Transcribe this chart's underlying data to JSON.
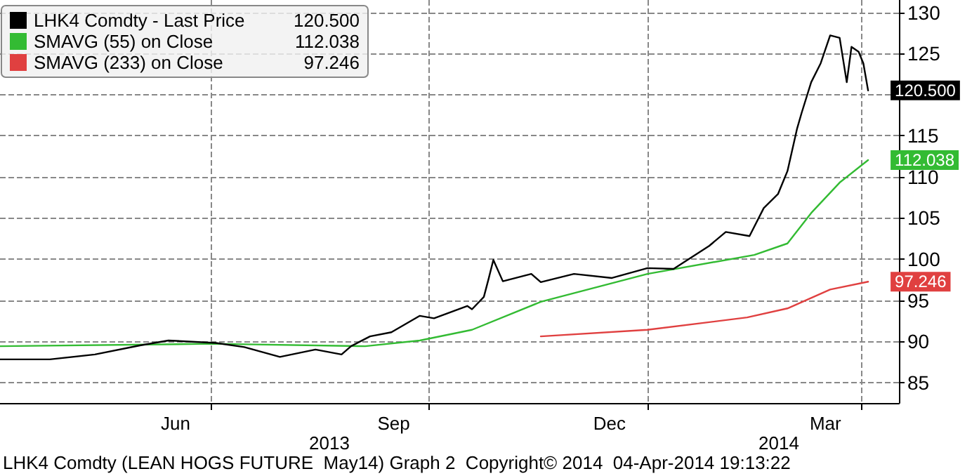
{
  "chart_data": {
    "type": "line",
    "annotations": [
      "2013",
      "2014",
      "LHK4 Comdty (LEAN HOGS FUTURE  May14) Graph 2  Copyright© 2014  04-Apr-2014 19:13:22"
    ],
    "xlim": [
      "2013-04-03",
      "2014-04-17"
    ],
    "xticks": [
      {
        "value": "2013-06-16",
        "label": "Jun"
      },
      {
        "value": "2013-07-01",
        "label": null
      },
      {
        "value": "2013-09-16",
        "label": "Sep"
      },
      {
        "value": "2013-10-01",
        "label": null
      },
      {
        "value": "2013-12-16",
        "label": "Dec"
      },
      {
        "value": "2014-01-01",
        "label": null
      },
      {
        "value": "2014-03-17",
        "label": "Mar"
      },
      {
        "value": "2014-04-01",
        "label": null
      }
    ],
    "ylim": [
      82.5,
      131.5
    ],
    "yticks": [
      85,
      90,
      95,
      100,
      105,
      110,
      115,
      {
        "value": 120,
        "label": null
      },
      125,
      130
    ],
    "grid": true,
    "legend": "top left",
    "marker": "none",
    "line_style": "solid",
    "series": [
      {
        "name": "LHK4 Comdty - Last Price",
        "color": "#000000",
        "x": [
          "2013-04-03",
          "2013-04-24",
          "2013-05-13",
          "2013-06-01",
          "2013-06-13",
          "2013-07-03",
          "2013-07-15",
          "2013-07-30",
          "2013-08-14",
          "2013-08-25",
          "2013-08-29",
          "2013-09-06",
          "2013-09-15",
          "2013-09-27",
          "2013-10-03",
          "2013-10-17",
          "2013-10-19",
          "2013-10-24",
          "2013-10-26",
          "2013-10-28",
          "2013-11-01",
          "2013-11-13",
          "2013-11-17",
          "2013-12-01",
          "2013-12-17",
          "2014-01-01",
          "2014-01-12",
          "2014-01-27",
          "2014-02-03",
          "2014-02-13",
          "2014-02-19",
          "2014-02-25",
          "2014-03-01",
          "2014-03-05",
          "2014-03-07",
          "2014-03-11",
          "2014-03-15",
          "2014-03-19",
          "2014-03-23",
          "2014-03-26",
          "2014-03-28",
          "2014-03-31",
          "2014-04-02",
          "2014-04-04"
        ],
        "values": [
          87.8,
          87.8,
          88.4,
          89.5,
          90.1,
          89.8,
          89.3,
          88.1,
          89.0,
          88.4,
          89.4,
          90.6,
          91.1,
          93.1,
          92.8,
          94.3,
          93.9,
          95.4,
          97.6,
          99.9,
          97.3,
          98.2,
          97.2,
          98.2,
          97.7,
          98.9,
          98.8,
          101.6,
          103.3,
          102.8,
          106.2,
          107.9,
          110.7,
          115.8,
          117.8,
          121.5,
          123.8,
          127.2,
          126.9,
          121.5,
          125.8,
          125.2,
          123.8,
          120.5
        ],
        "value_labels": [
          null,
          null,
          null,
          null,
          null,
          null,
          null,
          null,
          null,
          null,
          null,
          null,
          null,
          null,
          null,
          null,
          null,
          null,
          null,
          null,
          null,
          null,
          null,
          null,
          null,
          null,
          null,
          null,
          null,
          null,
          null,
          null,
          null,
          null,
          null,
          null,
          null,
          null,
          null,
          null,
          null,
          null,
          null,
          "120.500"
        ]
      },
      {
        "name": "SMAVG (55) on Close",
        "color": "#33bb33",
        "x": [
          "2013-04-03",
          "2013-07-01",
          "2013-09-04",
          "2013-09-27",
          "2013-10-19",
          "2013-11-17",
          "2014-01-01",
          "2014-02-15",
          "2014-03-01",
          "2014-03-11",
          "2014-03-23",
          "2014-04-04"
        ],
        "values": [
          89.4,
          89.7,
          89.4,
          90.1,
          91.4,
          94.8,
          98.2,
          100.5,
          101.9,
          105.6,
          109.3,
          112.038
        ],
        "value_labels": [
          null,
          null,
          null,
          null,
          null,
          null,
          null,
          null,
          null,
          null,
          null,
          "112.038"
        ]
      },
      {
        "name": "SMAVG (233) on Close",
        "color": "#e04040",
        "x": [
          "2013-11-17",
          "2014-01-01",
          "2014-02-12",
          "2014-03-01",
          "2014-03-19",
          "2014-04-04"
        ],
        "values": [
          90.6,
          91.4,
          92.9,
          94.0,
          96.3,
          97.246
        ],
        "value_labels": [
          null,
          null,
          null,
          null,
          null,
          "97.246"
        ]
      }
    ]
  }
}
